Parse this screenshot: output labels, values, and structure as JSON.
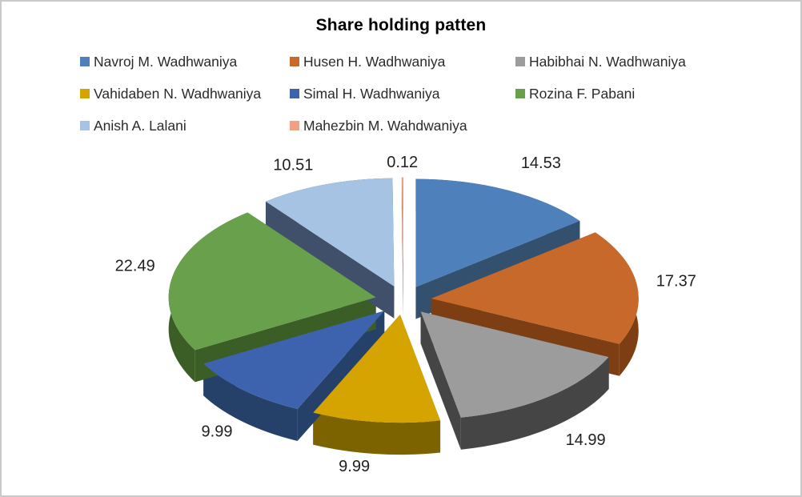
{
  "frame": {
    "background": "#FFFFFF",
    "border_color": "#C9C9C9"
  },
  "chart_data": {
    "type": "pie",
    "style": "3d-exploded",
    "title": "Share holding patten",
    "values_are": "percent",
    "legend_position": "top",
    "label_color": "#1F1F1F",
    "total": 99.99,
    "slices": [
      {
        "label": "Navroj M. Wadhwaniya",
        "value": 14.53,
        "value_label": "14.53",
        "color": "#4E80BB",
        "side_color": "#33516F"
      },
      {
        "label": "Husen H. Wadhwaniya",
        "value": 17.37,
        "value_label": "17.37",
        "color": "#C8692C",
        "side_color": "#7E3E13"
      },
      {
        "label": "Habibhai N. Wadhwaniya",
        "value": 14.99,
        "value_label": "14.99",
        "color": "#9C9C9C",
        "side_color": "#454545"
      },
      {
        "label": "Vahidaben N. Wadhwaniya",
        "value": 9.99,
        "value_label": "9.99",
        "color": "#D5A400",
        "side_color": "#7D6200"
      },
      {
        "label": "Simal H. Wadhwaniya",
        "value": 9.99,
        "value_label": "9.99",
        "color": "#3D63AE",
        "side_color": "#264169"
      },
      {
        "label": "Rozina F. Pabani",
        "value": 22.49,
        "value_label": "22.49",
        "color": "#69A04C",
        "side_color": "#3B5D26"
      },
      {
        "label": "Anish A. Lalani",
        "value": 10.51,
        "value_label": "10.51",
        "color": "#A6C3E4",
        "side_color": "#41506A"
      },
      {
        "label": "Mahezbin M. Wahdwaniya",
        "value": 0.12,
        "value_label": "0.12",
        "color": "#EFA183",
        "side_color": "#B06A50"
      }
    ]
  }
}
